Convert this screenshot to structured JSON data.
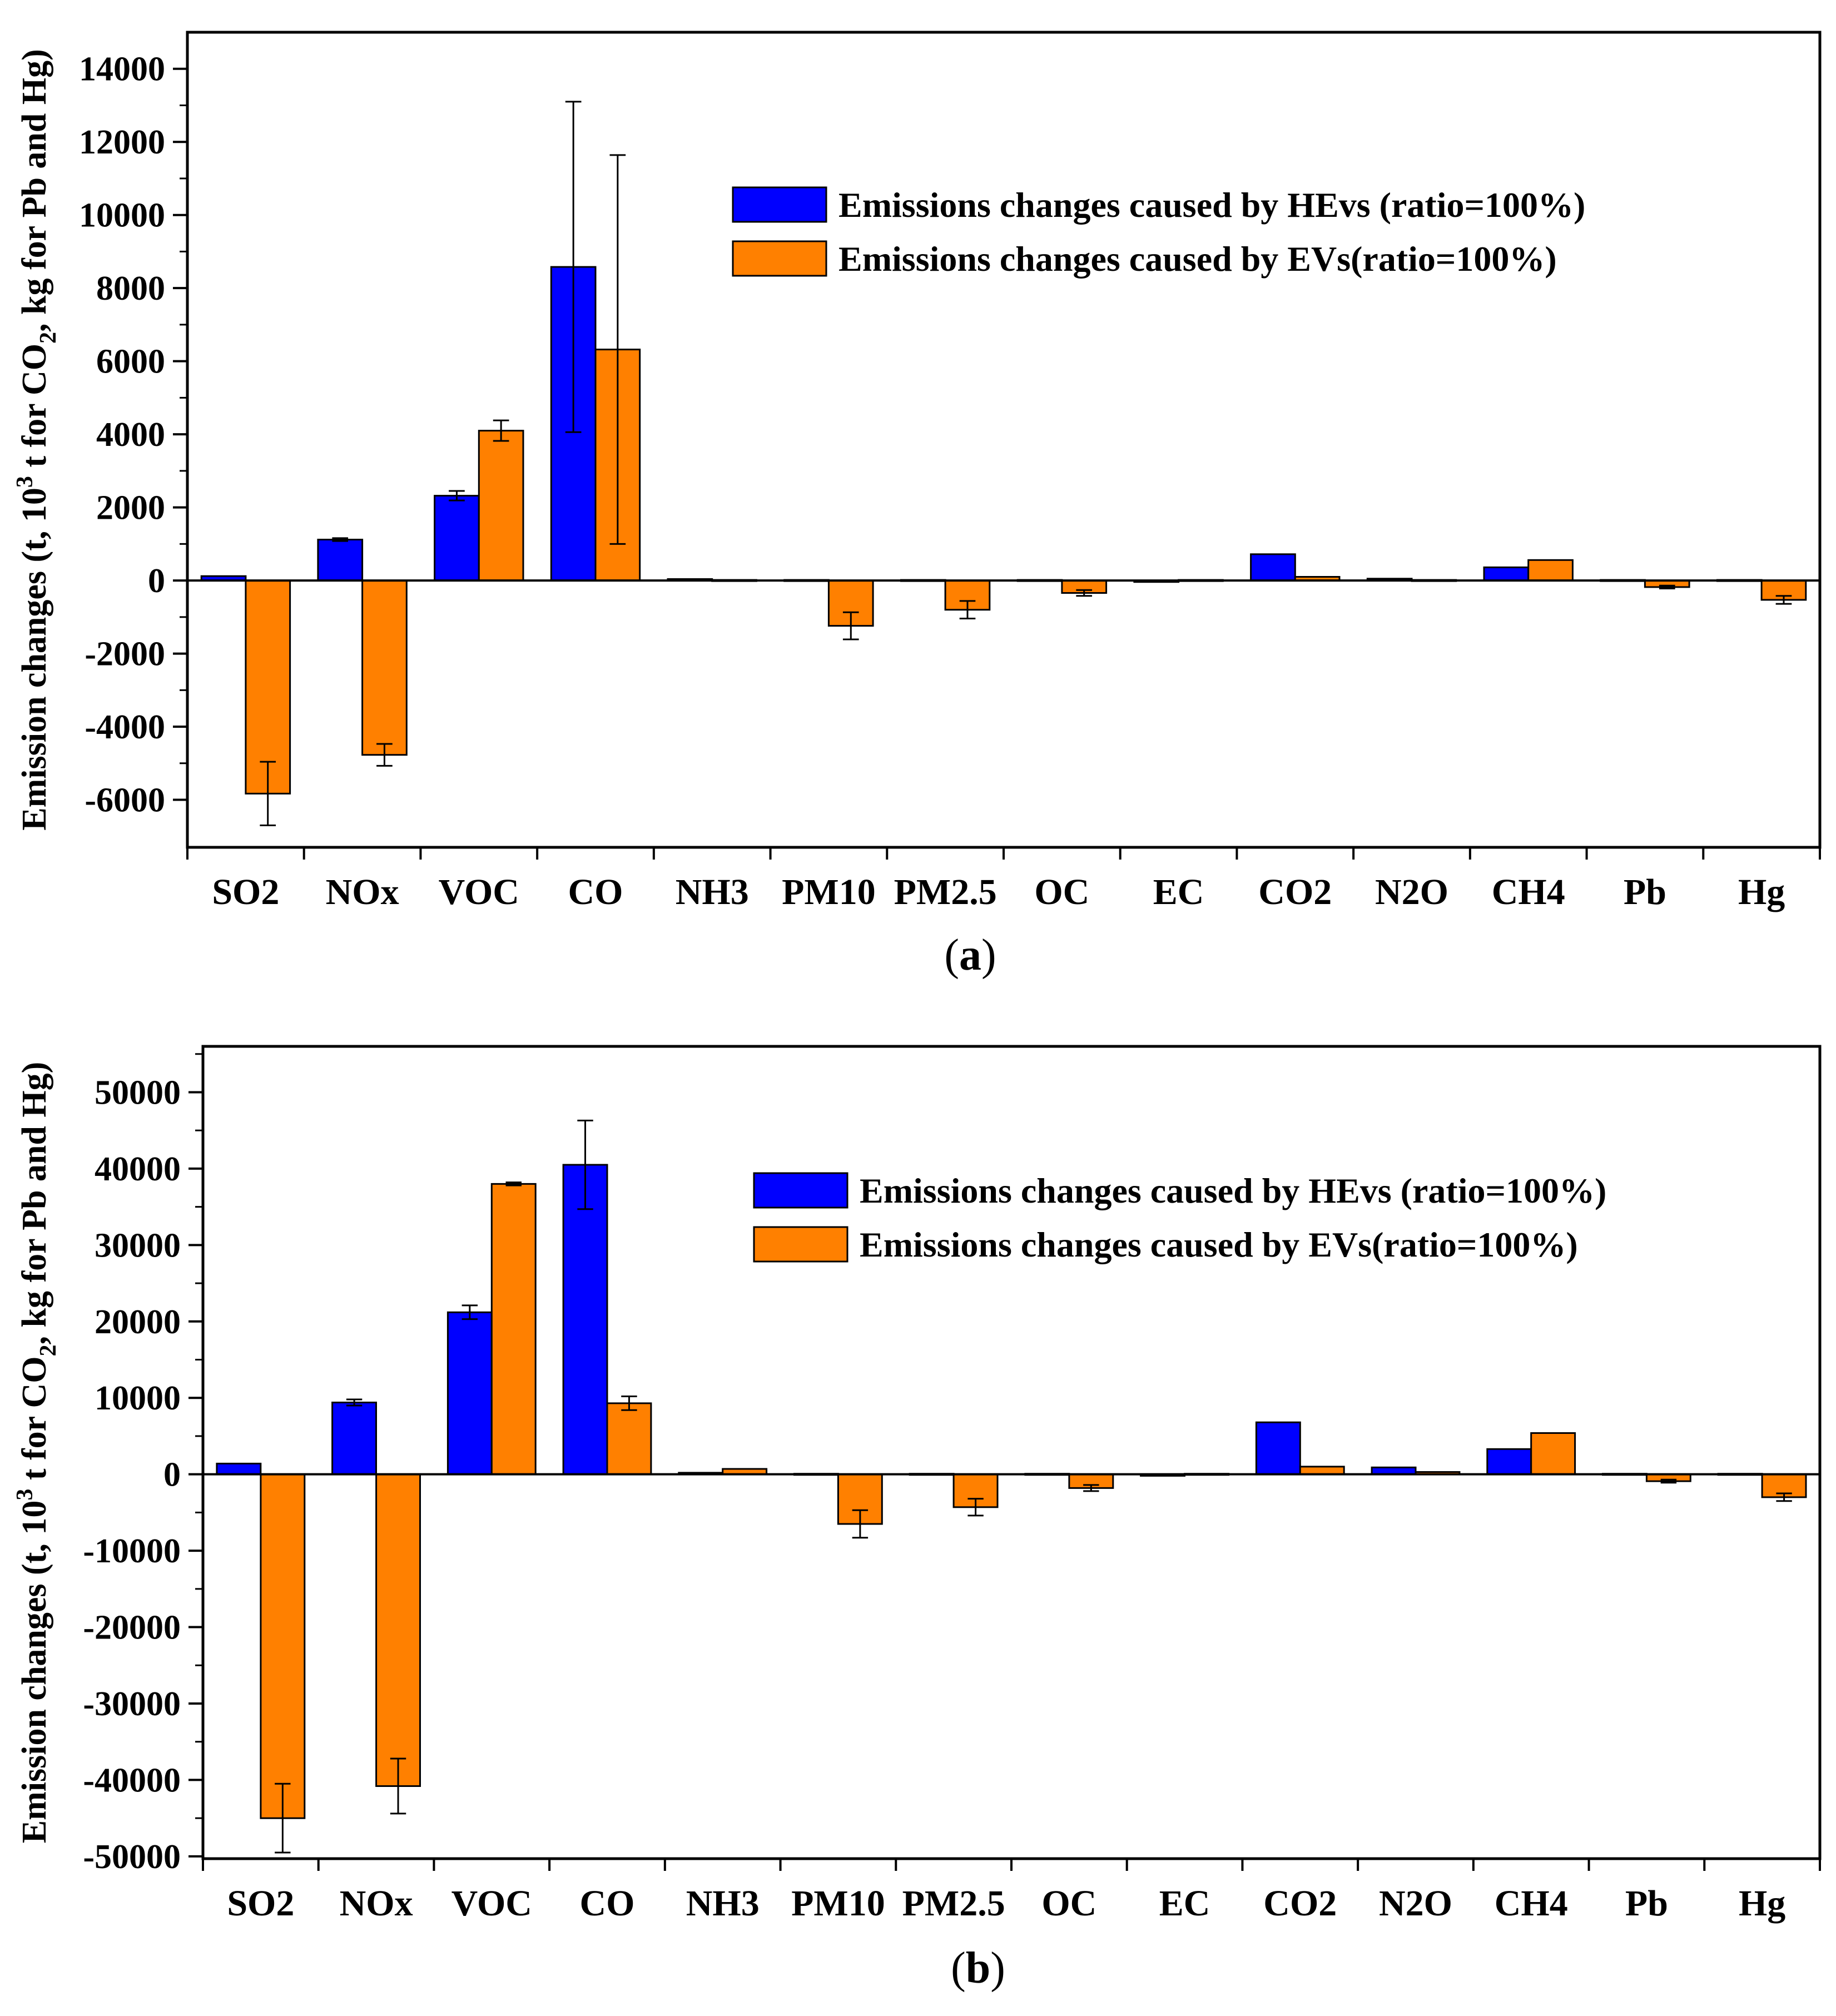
{
  "legend": {
    "hevs": "Emissions changes caused by HEvs (ratio=100%)",
    "evs": "Emissions changes caused by EVs(ratio=100%)"
  },
  "colors": {
    "hevs": "#0000FF",
    "evs": "#FF8000",
    "axis": "#000000"
  },
  "chart_data": [
    {
      "type": "bar",
      "panel_label": "a",
      "ylabel": {
        "pre": "Emission changes (t, 10",
        "sup": "3",
        "mid": " t for CO",
        "sub": "2",
        "post": ", kg for Pb and Hg)"
      },
      "ylim": [
        -7300,
        15000
      ],
      "yticks": [
        -6000,
        -4000,
        -2000,
        0,
        2000,
        4000,
        6000,
        8000,
        10000,
        12000,
        14000
      ],
      "categories": [
        "SO2",
        "NOx",
        "VOC",
        "CO",
        "NH3",
        "PM10",
        "PM2.5",
        "OC",
        "EC",
        "CO2",
        "N2O",
        "CH4",
        "Pb",
        "Hg"
      ],
      "series": [
        {
          "name": "Emissions changes caused by HEvs (ratio=100%)",
          "key": "hevs",
          "values": [
            120,
            1120,
            2320,
            8580,
            40,
            0,
            0,
            0,
            -40,
            720,
            50,
            360,
            0,
            0
          ],
          "errors": [
            0,
            40,
            130,
            4520,
            0,
            0,
            0,
            0,
            0,
            0,
            0,
            0,
            0,
            0
          ]
        },
        {
          "name": "Emissions changes caused by EVs(ratio=100%)",
          "key": "evs",
          "values": [
            -5830,
            -4770,
            4100,
            6320,
            0,
            -1240,
            -800,
            -340,
            0,
            100,
            0,
            560,
            -180,
            -530
          ],
          "errors": [
            870,
            300,
            280,
            5320,
            0,
            370,
            240,
            80,
            0,
            0,
            0,
            0,
            40,
            110
          ]
        }
      ]
    },
    {
      "type": "bar",
      "panel_label": "b",
      "ylabel": {
        "pre": "Emission changes (t, 10",
        "sup": "3",
        "mid": " t for CO",
        "sub": "2",
        "post": ", kg for Pb and Hg)"
      },
      "ylim": [
        -50300,
        56000
      ],
      "yticks": [
        -50000,
        -40000,
        -30000,
        -20000,
        -10000,
        0,
        10000,
        20000,
        30000,
        40000,
        50000
      ],
      "categories": [
        "SO2",
        "NOx",
        "VOC",
        "CO",
        "NH3",
        "PM10",
        "PM2.5",
        "OC",
        "EC",
        "CO2",
        "N2O",
        "CH4",
        "Pb",
        "Hg"
      ],
      "series": [
        {
          "name": "Emissions changes caused by HEvs (ratio=100%)",
          "key": "hevs",
          "values": [
            1400,
            9400,
            21200,
            40500,
            200,
            0,
            0,
            0,
            -200,
            6800,
            900,
            3300,
            0,
            0
          ],
          "errors": [
            0,
            400,
            900,
            5800,
            0,
            0,
            0,
            0,
            0,
            0,
            0,
            0,
            0,
            0
          ]
        },
        {
          "name": "Emissions changes caused by EVs(ratio=100%)",
          "key": "evs",
          "values": [
            -45000,
            -40800,
            38000,
            9300,
            700,
            -6500,
            -4300,
            -1800,
            0,
            1000,
            300,
            5400,
            -900,
            -3000
          ],
          "errors": [
            4500,
            3600,
            200,
            900,
            0,
            1800,
            1100,
            400,
            0,
            0,
            0,
            0,
            200,
            500
          ]
        }
      ]
    }
  ]
}
